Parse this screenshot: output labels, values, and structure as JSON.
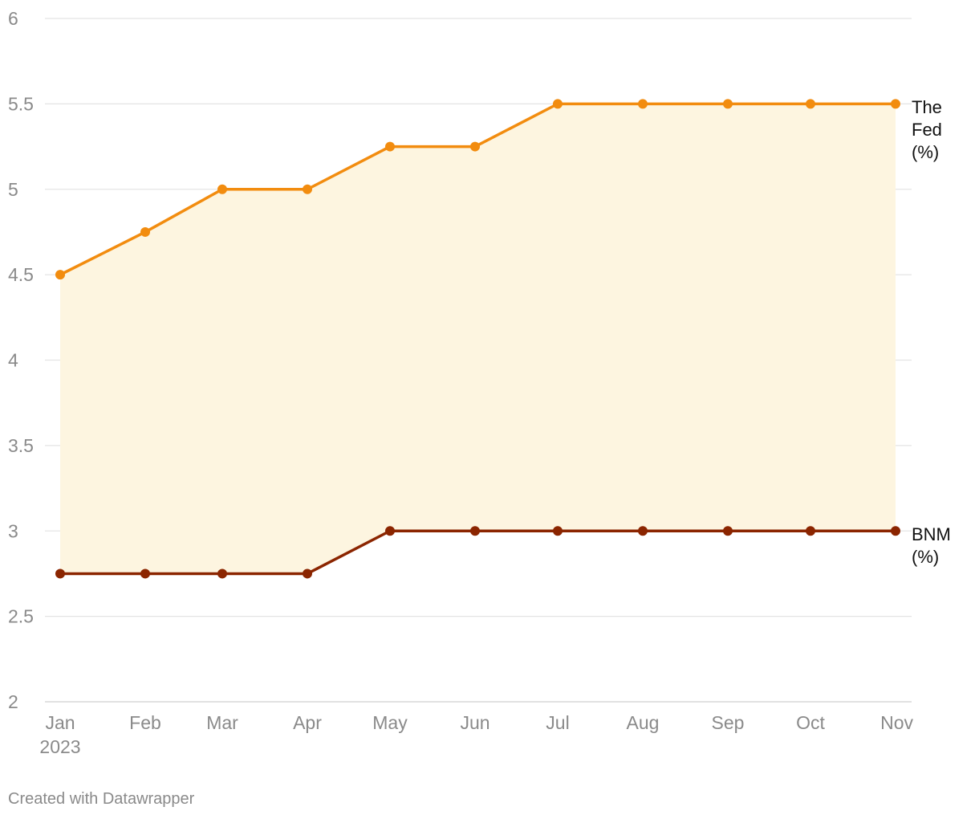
{
  "chart_data": {
    "type": "line",
    "categories": [
      "Jan",
      "Feb",
      "Mar",
      "Apr",
      "May",
      "Jun",
      "Jul",
      "Aug",
      "Sep",
      "Oct",
      "Nov"
    ],
    "category_sublabels": [
      "2023",
      "",
      "",
      "",
      "",
      "",
      "",
      "",
      "",
      "",
      ""
    ],
    "series": [
      {
        "name": "The Fed (%)",
        "label_lines": [
          "The",
          "Fed",
          "(%)"
        ],
        "color": "#f28c0f",
        "values": [
          4.5,
          4.75,
          5.0,
          5.0,
          5.25,
          5.25,
          5.5,
          5.5,
          5.5,
          5.5,
          5.5
        ]
      },
      {
        "name": "BNM (%)",
        "label_lines": [
          "BNM",
          "(%)"
        ],
        "color": "#8b2500",
        "values": [
          2.75,
          2.75,
          2.75,
          2.75,
          3.0,
          3.0,
          3.0,
          3.0,
          3.0,
          3.0,
          3.0
        ]
      }
    ],
    "fill_between_color": "#fdf5e0",
    "ylim": [
      2,
      6
    ],
    "yticks": [
      2,
      2.5,
      3,
      3.5,
      4,
      4.5,
      5,
      5.5,
      6
    ],
    "ytick_labels": [
      "2",
      "2.5",
      "3",
      "3.5",
      "4",
      "4.5",
      "5",
      "5.5",
      "6"
    ],
    "grid": true,
    "title": "",
    "xlabel": "",
    "ylabel": "",
    "legend": "direct labels at right end of lines"
  },
  "credit": "Created with Datawrapper"
}
